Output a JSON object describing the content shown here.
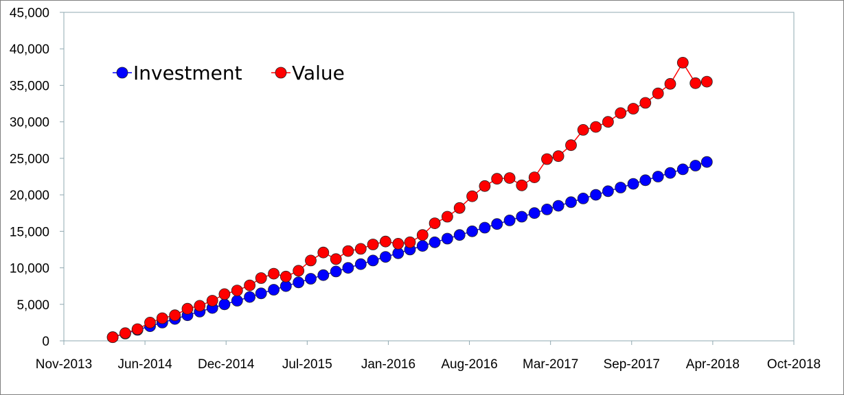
{
  "chart_data": {
    "type": "line",
    "title": "",
    "xlabel": "",
    "ylabel": "",
    "x_axis": {
      "type": "date",
      "min": "2013-11-01",
      "max": "2018-10-01",
      "tick_labels": [
        "Nov-2013",
        "Jun-2014",
        "Dec-2014",
        "Jul-2015",
        "Jan-2016",
        "Aug-2016",
        "Mar-2017",
        "Sep-2017",
        "Apr-2018",
        "Oct-2018"
      ]
    },
    "y_axis": {
      "min": 0,
      "max": 45000,
      "tick_labels": [
        "0",
        "5,000",
        "10,000",
        "15,000",
        "20,000",
        "25,000",
        "30,000",
        "35,000",
        "40,000",
        "45,000"
      ]
    },
    "grid": false,
    "legend": {
      "position": "top-left"
    },
    "x": [
      "2014-03-01",
      "2014-04-01",
      "2014-05-01",
      "2014-06-01",
      "2014-07-01",
      "2014-08-01",
      "2014-09-01",
      "2014-10-01",
      "2014-11-01",
      "2014-12-01",
      "2015-01-01",
      "2015-02-01",
      "2015-03-01",
      "2015-04-01",
      "2015-05-01",
      "2015-06-01",
      "2015-07-01",
      "2015-08-01",
      "2015-09-01",
      "2015-10-01",
      "2015-11-01",
      "2015-12-01",
      "2016-01-01",
      "2016-02-01",
      "2016-03-01",
      "2016-04-01",
      "2016-05-01",
      "2016-06-01",
      "2016-07-01",
      "2016-08-01",
      "2016-09-01",
      "2016-10-01",
      "2016-11-01",
      "2016-12-01",
      "2017-01-01",
      "2017-02-01",
      "2017-03-01",
      "2017-04-01",
      "2017-05-01",
      "2017-06-01",
      "2017-07-01",
      "2017-08-01",
      "2017-09-01",
      "2017-10-01",
      "2017-11-01",
      "2017-12-01",
      "2018-01-01",
      "2018-02-01",
      "2018-03-01"
    ],
    "series": [
      {
        "name": "Investment",
        "color": "#0000ff",
        "values": [
          500,
          1000,
          1500,
          2000,
          2500,
          3000,
          3500,
          4000,
          4500,
          5000,
          5500,
          6000,
          6500,
          7000,
          7500,
          8000,
          8500,
          9000,
          9500,
          10000,
          10500,
          11000,
          11500,
          12000,
          12500,
          13000,
          13500,
          14000,
          14500,
          15000,
          15500,
          16000,
          16500,
          17000,
          17500,
          18000,
          18500,
          19000,
          19500,
          20000,
          20500,
          21000,
          21500,
          22000,
          22500,
          23000,
          23500,
          24000,
          24500
        ]
      },
      {
        "name": "Value",
        "color": "#ff0000",
        "values": [
          500,
          1050,
          1600,
          2500,
          3100,
          3500,
          4400,
          4800,
          5500,
          6400,
          6900,
          7600,
          8600,
          9200,
          8800,
          9600,
          11000,
          12100,
          11200,
          12300,
          12600,
          13200,
          13600,
          13300,
          13500,
          14500,
          16100,
          17000,
          18200,
          19800,
          21200,
          22200,
          22300,
          21300,
          22400,
          24900,
          25300,
          26800,
          28900,
          29300,
          30000,
          31200,
          31800,
          32600,
          33900,
          35200,
          38100,
          35300,
          35500
        ]
      }
    ]
  }
}
